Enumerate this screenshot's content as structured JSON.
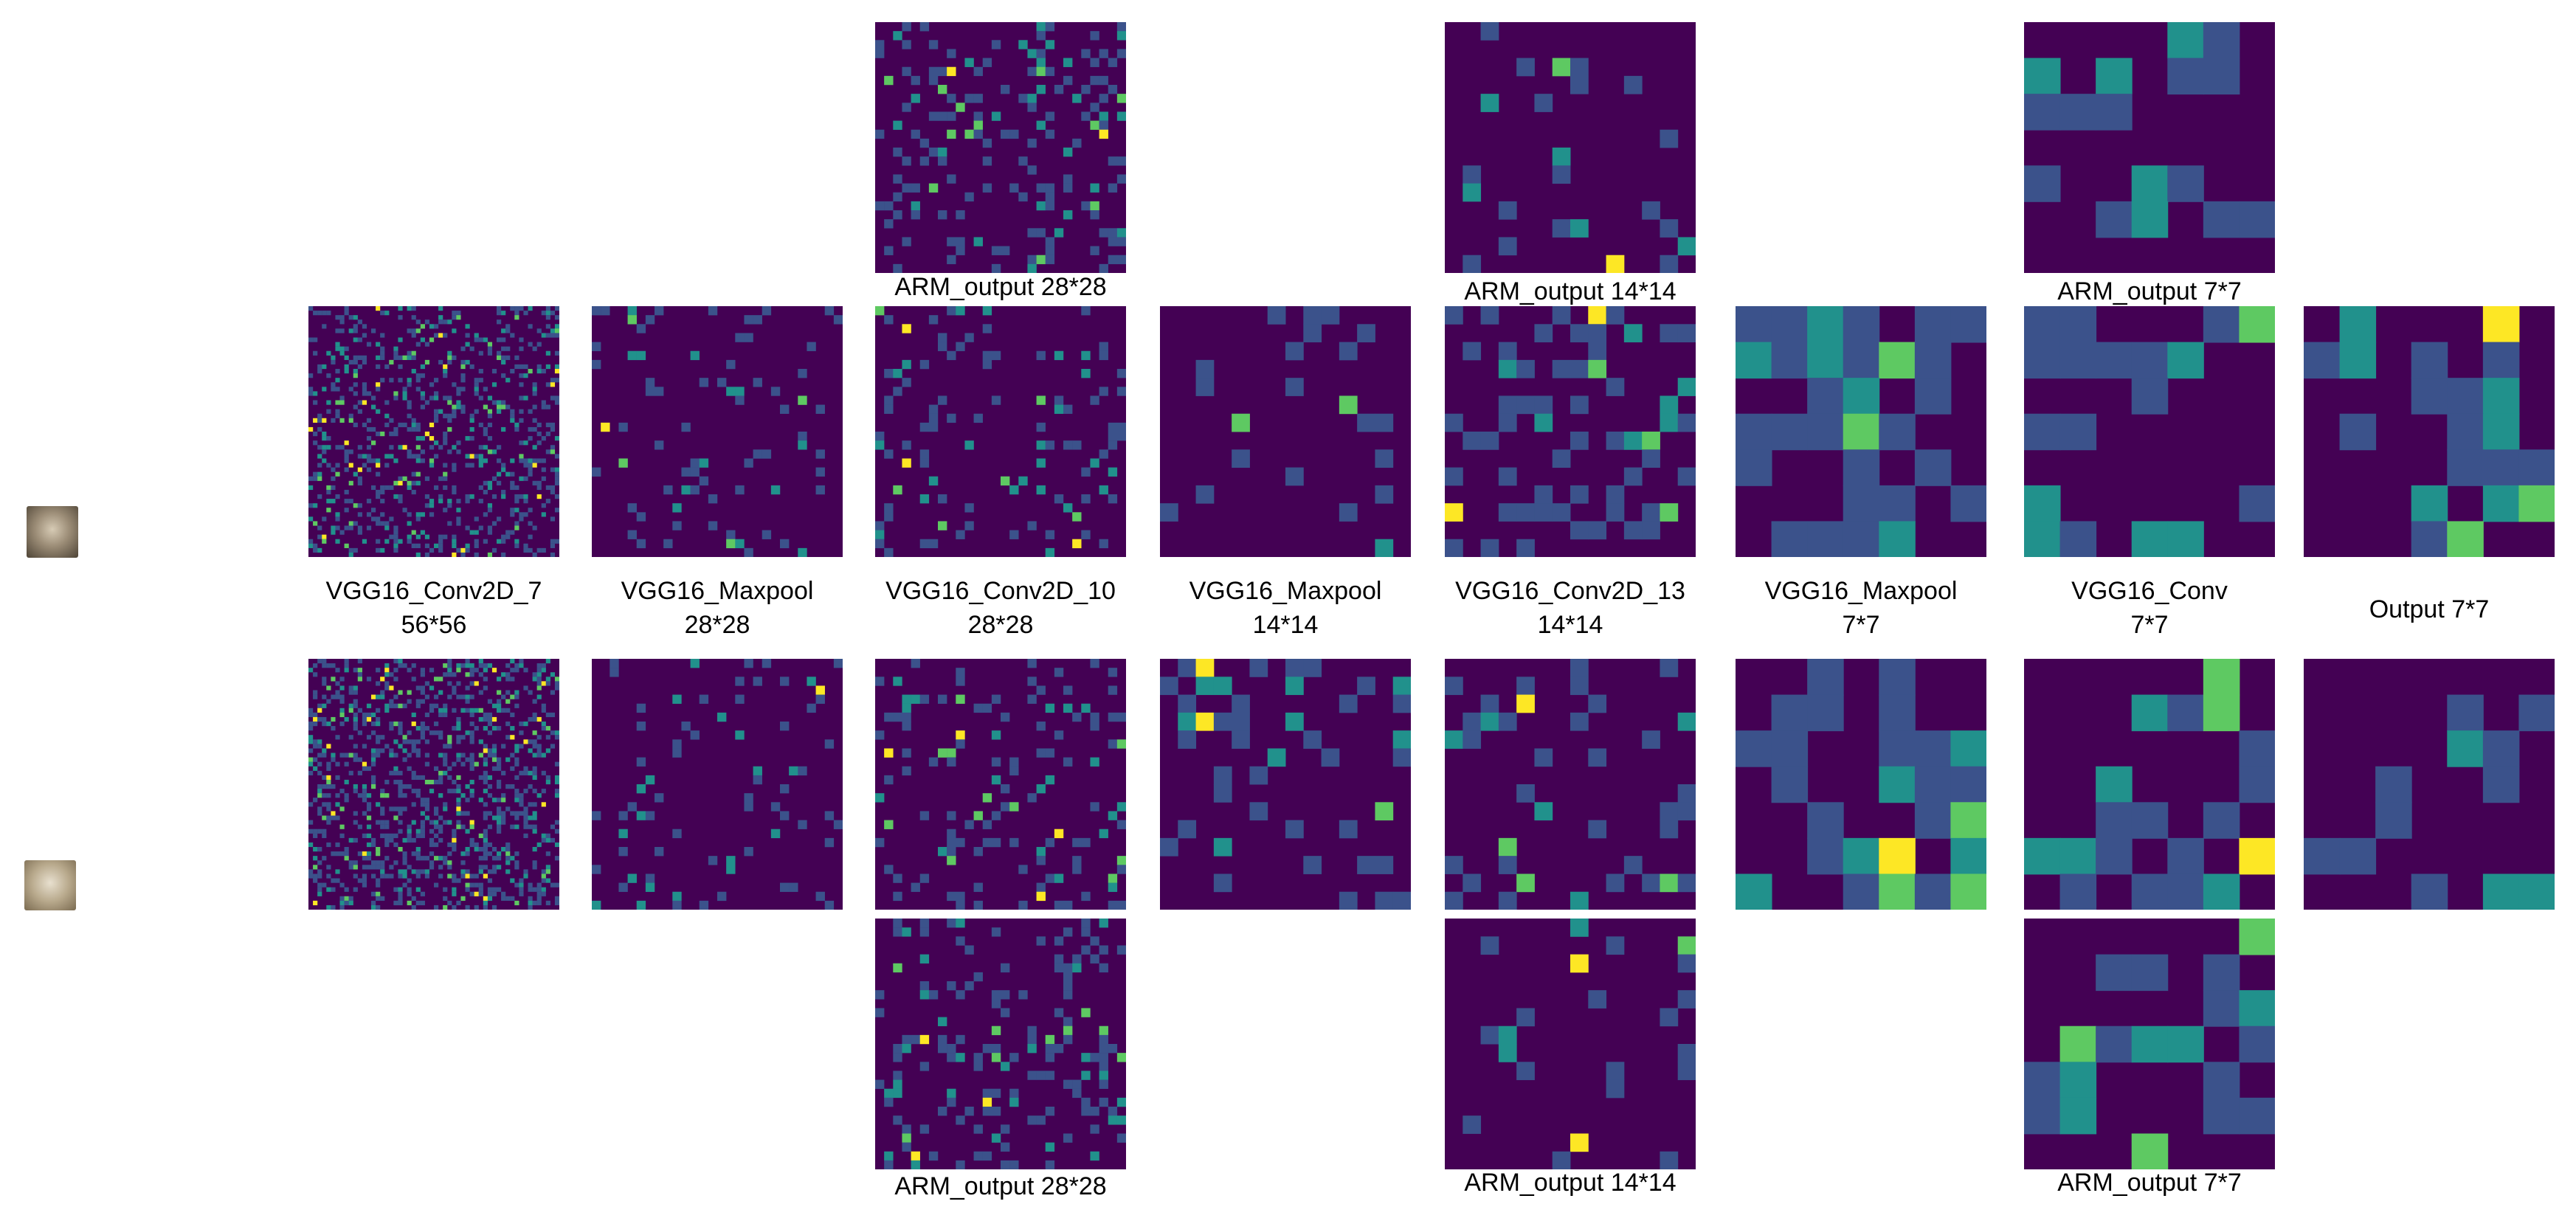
{
  "labels": {
    "arm_top_28": "ARM_output 28*28",
    "arm_top_14": "ARM_output 14*14",
    "arm_top_7": "ARM_output 7*7",
    "arm_bot_28": "ARM_output 28*28",
    "arm_bot_14": "ARM_output 14*14",
    "arm_bot_7": "ARM_output 7*7",
    "col1": "VGG16_Conv2D_7",
    "col1_size": "56*56",
    "col2": "VGG16_Maxpool",
    "col2_size": "28*28",
    "col3": "VGG16_Conv2D_10",
    "col3_size": "28*28",
    "col4": "VGG16_Maxpool",
    "col4_size": "14*14",
    "col5": "VGG16_Conv2D_13",
    "col5_size": "14*14",
    "col6": "VGG16_Maxpool",
    "col6_size": "7*7",
    "col7": "VGG16_Conv",
    "col7_size": "7*7",
    "col8": "Output 7*7"
  },
  "colors": {
    "background": "#440154",
    "low": "#3b528b",
    "mid": "#21918c",
    "high": "#5ec962",
    "peak": "#fde725"
  }
}
